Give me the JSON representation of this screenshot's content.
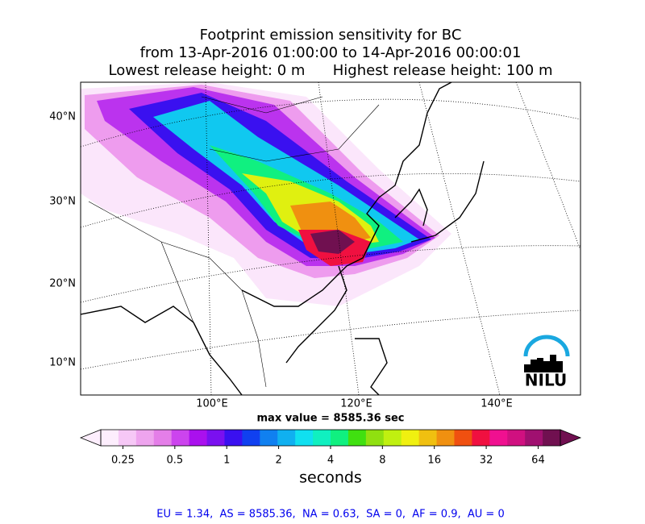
{
  "title_lines": [
    "Footprint emission sensitivity for BC",
    "from 13-Apr-2016 01:00:00 to 14-Apr-2016 00:00:01",
    "Lowest release height: 0 m      Highest release height: 100 m"
  ],
  "map": {
    "lat_labels": [
      "40°N",
      "30°N",
      "20°N",
      "10°N"
    ],
    "lon_labels": [
      "100°E",
      "120°E",
      "140°E"
    ],
    "logo": "NILU",
    "max_value": "max value = 8585.36 sec"
  },
  "colorbar": {
    "ticks": [
      0.25,
      0.5,
      1,
      2,
      4,
      8,
      16,
      32,
      64
    ],
    "lim": [
      0.186,
      86.1
    ],
    "log": true,
    "label": "seconds",
    "colors": [
      "#fdeefd",
      "#f6c8f6",
      "#eea4ee",
      "#e47ee8",
      "#cc44ee",
      "#aa10ee",
      "#7a10f0",
      "#3a10f0",
      "#1040f0",
      "#1080f0",
      "#10b0f0",
      "#10e0f0",
      "#10f0c0",
      "#10f080",
      "#40e010",
      "#90e010",
      "#c0f010",
      "#f0f010",
      "#f0c010",
      "#f09010",
      "#f05010",
      "#f01040",
      "#f01090",
      "#d01080",
      "#a01070",
      "#701050"
    ]
  },
  "footer": "EU = 1.34,  AS = 8585.36,  NA = 0.63,  SA = 0,  AF = 0.9,  AU = 0"
}
